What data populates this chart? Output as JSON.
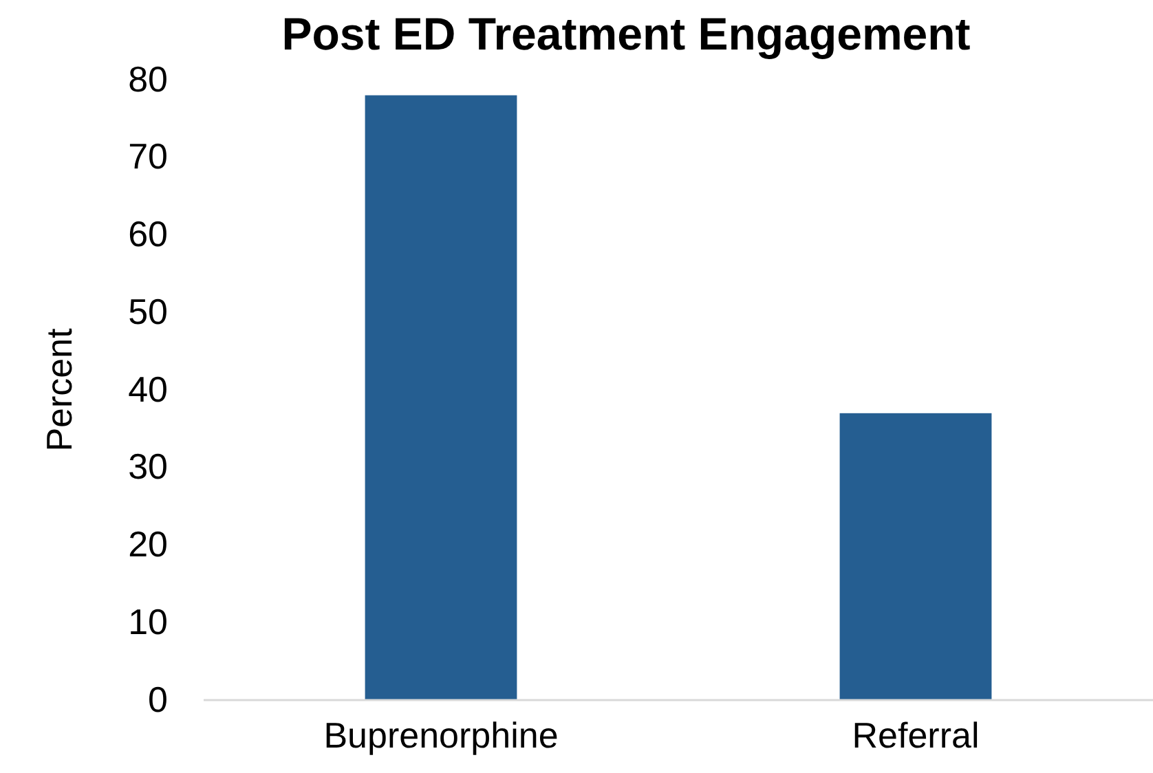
{
  "chart_data": {
    "type": "bar",
    "title": "Post ED Treatment Engagement",
    "ylabel": "Percent",
    "categories": [
      "Buprenorphine",
      "Referral"
    ],
    "values": [
      78,
      37
    ],
    "color": "#255e91",
    "ylim": [
      0,
      80
    ],
    "yticks": [
      0,
      10,
      20,
      30,
      40,
      50,
      60,
      70,
      80
    ],
    "grid": false
  }
}
